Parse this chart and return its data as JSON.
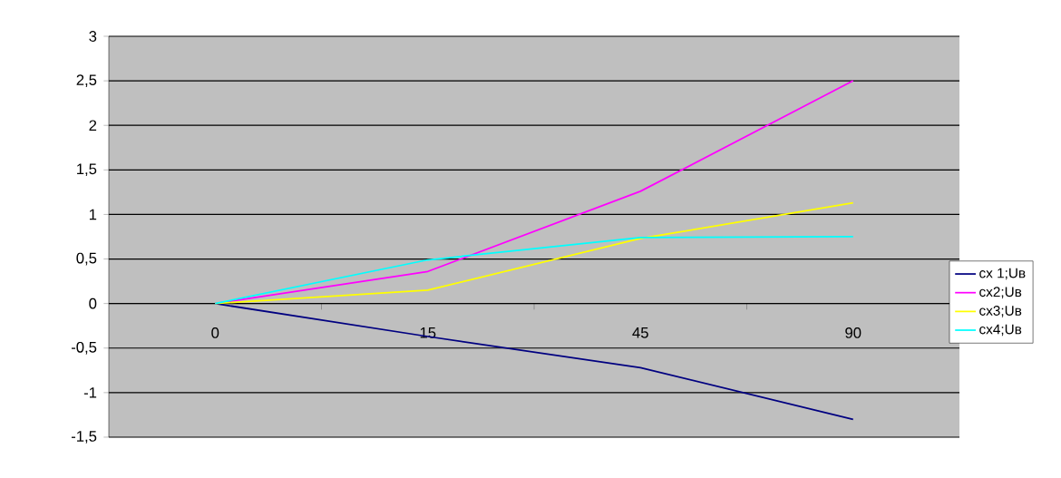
{
  "chart_data": {
    "type": "line",
    "categories": [
      "0",
      "15",
      "45",
      "90"
    ],
    "series": [
      {
        "name": "сх 1;Uв",
        "color": "#000080",
        "values": [
          0,
          -0.37,
          -0.72,
          -1.3
        ]
      },
      {
        "name": "сх2;Uв",
        "color": "#ff00ff",
        "values": [
          0,
          0.36,
          1.26,
          2.5
        ]
      },
      {
        "name": "сх3;Uв",
        "color": "#ffff00",
        "values": [
          0,
          0.15,
          0.73,
          1.13
        ]
      },
      {
        "name": "сх4;Uв",
        "color": "#00ffff",
        "values": [
          0,
          0.49,
          0.74,
          0.75
        ]
      }
    ],
    "ylim": [
      -1.5,
      3
    ],
    "yticks": [
      {
        "value": -1.5,
        "label": "-1,5"
      },
      {
        "value": -1,
        "label": "-1"
      },
      {
        "value": -0.5,
        "label": "-0,5"
      },
      {
        "value": 0,
        "label": "0"
      },
      {
        "value": 0.5,
        "label": "0,5"
      },
      {
        "value": 1,
        "label": "1"
      },
      {
        "value": 1.5,
        "label": "1,5"
      },
      {
        "value": 2,
        "label": "2"
      },
      {
        "value": 2.5,
        "label": "2,5"
      },
      {
        "value": 3,
        "label": "3"
      }
    ],
    "grid": "y",
    "legend": "right",
    "marker": "none",
    "line_style": "solid"
  }
}
